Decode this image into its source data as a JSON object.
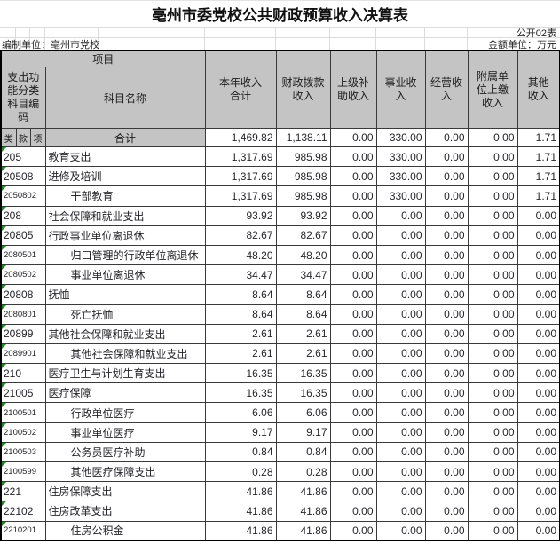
{
  "page": {
    "title": "亳州市委党校公共财政预算收入决算表",
    "sheet_label": "公开02表",
    "prepared_by": "编制单位：亳州市党校",
    "unit_label": "金额单位：万元"
  },
  "colors": {
    "header_bg": "#c4c4c4",
    "grid_line": "#3a3a3a",
    "flag_triangle": "#1f8a1f",
    "text": "#26262b"
  },
  "table": {
    "header": {
      "project": "项目",
      "code": "支出功\n能分类\n科目编\n码",
      "subject": "科目名称",
      "sub": [
        "类",
        "款",
        "项"
      ],
      "cols": [
        "本年收入\n合计",
        "财政拨款\n收入",
        "上级补\n助收入",
        "事业收\n入",
        "经营收\n入",
        "附属单\n位上缴\n收入",
        "其他\n收入"
      ]
    },
    "total_row": {
      "label": "合计",
      "values": [
        "1,469.82",
        "1,138.11",
        "0.00",
        "330.00",
        "0.00",
        "0.00",
        "1.71"
      ]
    },
    "rows": [
      {
        "code": "205",
        "name": "教育支出",
        "indent": 0,
        "values": [
          "1,317.69",
          "985.98",
          "0.00",
          "330.00",
          "0.00",
          "0.00",
          "1.71"
        ]
      },
      {
        "code": "20508",
        "name": "进修及培训",
        "indent": 0,
        "values": [
          "1,317.69",
          "985.98",
          "0.00",
          "330.00",
          "0.00",
          "0.00",
          "1.71"
        ]
      },
      {
        "code": "2050802",
        "name": "干部教育",
        "indent": 1,
        "values": [
          "1,317.69",
          "985.98",
          "0.00",
          "330.00",
          "0.00",
          "0.00",
          "1.71"
        ]
      },
      {
        "code": "208",
        "name": "社会保障和就业支出",
        "indent": 0,
        "values": [
          "93.92",
          "93.92",
          "0.00",
          "0.00",
          "0.00",
          "0.00",
          "0.00"
        ]
      },
      {
        "code": "20805",
        "name": "行政事业单位离退休",
        "indent": 0,
        "values": [
          "82.67",
          "82.67",
          "0.00",
          "0.00",
          "0.00",
          "0.00",
          "0.00"
        ]
      },
      {
        "code": "2080501",
        "name": "归口管理的行政单位离退休",
        "indent": 1,
        "values": [
          "48.20",
          "48.20",
          "0.00",
          "0.00",
          "0.00",
          "0.00",
          "0.00"
        ]
      },
      {
        "code": "2080502",
        "name": "事业单位离退休",
        "indent": 1,
        "values": [
          "34.47",
          "34.47",
          "0.00",
          "0.00",
          "0.00",
          "0.00",
          "0.00"
        ]
      },
      {
        "code": "20808",
        "name": "抚恤",
        "indent": 0,
        "values": [
          "8.64",
          "8.64",
          "0.00",
          "0.00",
          "0.00",
          "0.00",
          "0.00"
        ]
      },
      {
        "code": "2080801",
        "name": "死亡抚恤",
        "indent": 1,
        "values": [
          "8.64",
          "8.64",
          "0.00",
          "0.00",
          "0.00",
          "0.00",
          "0.00"
        ]
      },
      {
        "code": "20899",
        "name": "其他社会保障和就业支出",
        "indent": 0,
        "values": [
          "2.61",
          "2.61",
          "0.00",
          "0.00",
          "0.00",
          "0.00",
          "0.00"
        ]
      },
      {
        "code": "2089901",
        "name": "其他社会保障和就业支出",
        "indent": 1,
        "values": [
          "2.61",
          "2.61",
          "0.00",
          "0.00",
          "0.00",
          "0.00",
          "0.00"
        ]
      },
      {
        "code": "210",
        "name": "医疗卫生与计划生育支出",
        "indent": 0,
        "values": [
          "16.35",
          "16.35",
          "0.00",
          "0.00",
          "0.00",
          "0.00",
          "0.00"
        ]
      },
      {
        "code": "21005",
        "name": "医疗保障",
        "indent": 0,
        "values": [
          "16.35",
          "16.35",
          "0.00",
          "0.00",
          "0.00",
          "0.00",
          "0.00"
        ]
      },
      {
        "code": "2100501",
        "name": "行政单位医疗",
        "indent": 1,
        "values": [
          "6.06",
          "6.06",
          "0.00",
          "0.00",
          "0.00",
          "0.00",
          "0.00"
        ]
      },
      {
        "code": "2100502",
        "name": "事业单位医疗",
        "indent": 1,
        "values": [
          "9.17",
          "9.17",
          "0.00",
          "0.00",
          "0.00",
          "0.00",
          "0.00"
        ]
      },
      {
        "code": "2100503",
        "name": "公务员医疗补助",
        "indent": 1,
        "values": [
          "0.84",
          "0.84",
          "0.00",
          "0.00",
          "0.00",
          "0.00",
          "0.00"
        ]
      },
      {
        "code": "2100599",
        "name": "其他医疗保障支出",
        "indent": 1,
        "values": [
          "0.28",
          "0.28",
          "0.00",
          "0.00",
          "0.00",
          "0.00",
          "0.00"
        ]
      },
      {
        "code": "221",
        "name": "住房保障支出",
        "indent": 0,
        "values": [
          "41.86",
          "41.86",
          "0.00",
          "0.00",
          "0.00",
          "0.00",
          "0.00"
        ]
      },
      {
        "code": "22102",
        "name": "住房改革支出",
        "indent": 0,
        "values": [
          "41.86",
          "41.86",
          "0.00",
          "0.00",
          "0.00",
          "0.00",
          "0.00"
        ]
      },
      {
        "code": "2210201",
        "name": "住房公积金",
        "indent": 1,
        "values": [
          "41.86",
          "41.86",
          "0.00",
          "0.00",
          "0.00",
          "0.00",
          "0.00"
        ]
      }
    ]
  }
}
